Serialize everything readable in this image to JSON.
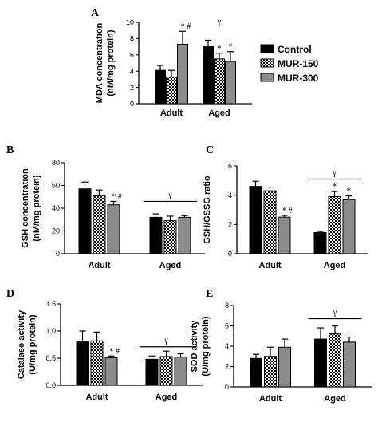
{
  "legend": {
    "entries": [
      {
        "label": "Control",
        "pattern": "solid",
        "color": "#000000"
      },
      {
        "label": "MUR-150",
        "pattern": "checker",
        "color": "#000000"
      },
      {
        "label": "MUR-300",
        "pattern": "gray",
        "color": "#8c8c8c"
      }
    ]
  },
  "chart_data": [
    {
      "panel": "A",
      "type": "bar",
      "ylabel": [
        "MDA concentration",
        "(nM/mg protein)"
      ],
      "categories": [
        "Adult",
        "Aged"
      ],
      "ylim": [
        0,
        10
      ],
      "yticks": [
        0,
        2,
        4,
        6,
        8,
        10
      ],
      "series": [
        {
          "name": "Control",
          "values": [
            4.1,
            7.0
          ],
          "errors": [
            0.6,
            0.8
          ]
        },
        {
          "name": "MUR-150",
          "values": [
            3.3,
            5.5
          ],
          "errors": [
            0.8,
            0.7
          ]
        },
        {
          "name": "MUR-300",
          "values": [
            7.3,
            5.2
          ],
          "errors": [
            1.6,
            1.2
          ]
        }
      ],
      "annotations": [
        {
          "group": 0,
          "series": 2,
          "text": "* #"
        },
        {
          "group": 1,
          "series": 1,
          "text": "*"
        },
        {
          "group": 1,
          "series": 2,
          "text": "*"
        }
      ],
      "gamma": {
        "group": 1,
        "value": 9.3,
        "text": "γ",
        "line": false
      }
    },
    {
      "panel": "B",
      "type": "bar",
      "ylabel": [
        "GSH concentration",
        "(nM/mg protein)"
      ],
      "categories": [
        "Adult",
        "Aged"
      ],
      "ylim": [
        0,
        80
      ],
      "yticks": [
        0,
        20,
        40,
        60,
        80
      ],
      "series": [
        {
          "name": "Control",
          "values": [
            57,
            32
          ],
          "errors": [
            6,
            3
          ]
        },
        {
          "name": "MUR-150",
          "values": [
            51,
            29
          ],
          "errors": [
            5,
            4
          ]
        },
        {
          "name": "MUR-300",
          "values": [
            43,
            32
          ],
          "errors": [
            3,
            1.5
          ]
        }
      ],
      "annotations": [
        {
          "group": 0,
          "series": 2,
          "text": "* #"
        }
      ],
      "gamma": {
        "group": 1,
        "value": 46,
        "text": "γ",
        "line": true
      }
    },
    {
      "panel": "C",
      "type": "bar",
      "ylabel": [
        "GSH/GSSG ratio"
      ],
      "categories": [
        "Adult",
        "Aged"
      ],
      "ylim": [
        0,
        6
      ],
      "yticks": [
        0,
        2,
        4,
        6
      ],
      "series": [
        {
          "name": "Control",
          "values": [
            4.6,
            1.45
          ],
          "errors": [
            0.35,
            0.08
          ]
        },
        {
          "name": "MUR-150",
          "values": [
            4.3,
            3.9
          ],
          "errors": [
            0.25,
            0.35
          ]
        },
        {
          "name": "MUR-300",
          "values": [
            2.5,
            3.7
          ],
          "errors": [
            0.12,
            0.25
          ]
        }
      ],
      "annotations": [
        {
          "group": 0,
          "series": 2,
          "text": "* #"
        },
        {
          "group": 1,
          "series": 1,
          "text": "*"
        },
        {
          "group": 1,
          "series": 2,
          "text": "*"
        }
      ],
      "gamma": {
        "group": 1,
        "value": 5.1,
        "text": "γ",
        "line": true
      }
    },
    {
      "panel": "D",
      "type": "bar",
      "ylabel": [
        "Catalase activity",
        "(U/mg protein)"
      ],
      "categories": [
        "Adult",
        "Aged"
      ],
      "ylim": [
        0,
        1.5
      ],
      "yticks": [
        0.0,
        0.5,
        1.0,
        1.5
      ],
      "series": [
        {
          "name": "Control",
          "values": [
            0.8,
            0.48
          ],
          "errors": [
            0.2,
            0.06
          ]
        },
        {
          "name": "MUR-150",
          "values": [
            0.82,
            0.53
          ],
          "errors": [
            0.16,
            0.1
          ]
        },
        {
          "name": "MUR-300",
          "values": [
            0.51,
            0.52
          ],
          "errors": [
            0.03,
            0.06
          ]
        }
      ],
      "annotations": [
        {
          "group": 0,
          "series": 2,
          "text": "* #"
        }
      ],
      "gamma": {
        "group": 1,
        "value": 0.71,
        "text": "γ",
        "line": true
      }
    },
    {
      "panel": "E",
      "type": "bar",
      "ylabel": [
        "SOD activity",
        "(U/mg protein)"
      ],
      "categories": [
        "Adult",
        "Aged"
      ],
      "ylim": [
        0,
        8
      ],
      "yticks": [
        0,
        2,
        4,
        6,
        8
      ],
      "series": [
        {
          "name": "Control",
          "values": [
            2.8,
            4.7
          ],
          "errors": [
            0.4,
            1.1
          ]
        },
        {
          "name": "MUR-150",
          "values": [
            3.0,
            5.2
          ],
          "errors": [
            0.9,
            0.8
          ]
        },
        {
          "name": "MUR-300",
          "values": [
            3.9,
            4.4
          ],
          "errors": [
            0.8,
            0.5
          ]
        }
      ],
      "annotations": [],
      "gamma": {
        "group": 1,
        "value": 6.7,
        "text": "γ",
        "line": true
      }
    }
  ]
}
